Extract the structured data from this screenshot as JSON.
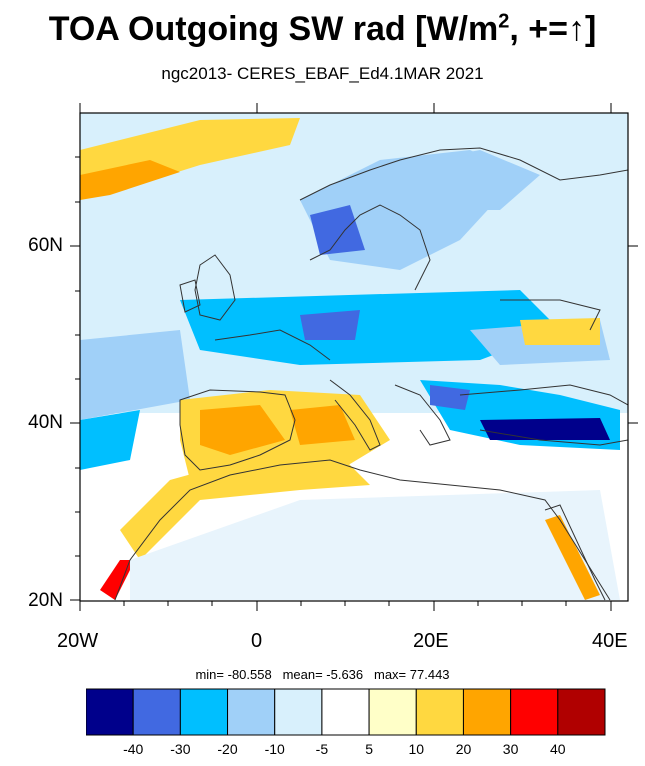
{
  "title_text": "TOA Outgoing SW rad [W/m",
  "title_sup": "2",
  "title_tail": ", +=↑]",
  "subtitle": "ngc2013- CERES_EBAF_Ed4.1MAR 2021",
  "lat_labels": [
    "60N",
    "40N",
    "20N"
  ],
  "lon_labels": [
    "20W",
    "0",
    "20E",
    "40E"
  ],
  "stats": {
    "min": "min= -80.558",
    "mean": "mean=  -5.636",
    "max": "max=  77.443"
  },
  "colorbar": {
    "colors": [
      "#00008b",
      "#4169e1",
      "#00bfff",
      "#a0d0f8",
      "#d8f0fc",
      "#ffffff",
      "#ffffc8",
      "#ffd840",
      "#ffa500",
      "#ff0000",
      "#b00000"
    ],
    "labels": [
      "-40",
      "-30",
      "-20",
      "-10",
      "-5",
      "5",
      "10",
      "20",
      "30",
      "40"
    ]
  },
  "map_extent": {
    "lon_min": -20,
    "lon_max": 40,
    "lat_min": 20,
    "lat_max": 75
  }
}
